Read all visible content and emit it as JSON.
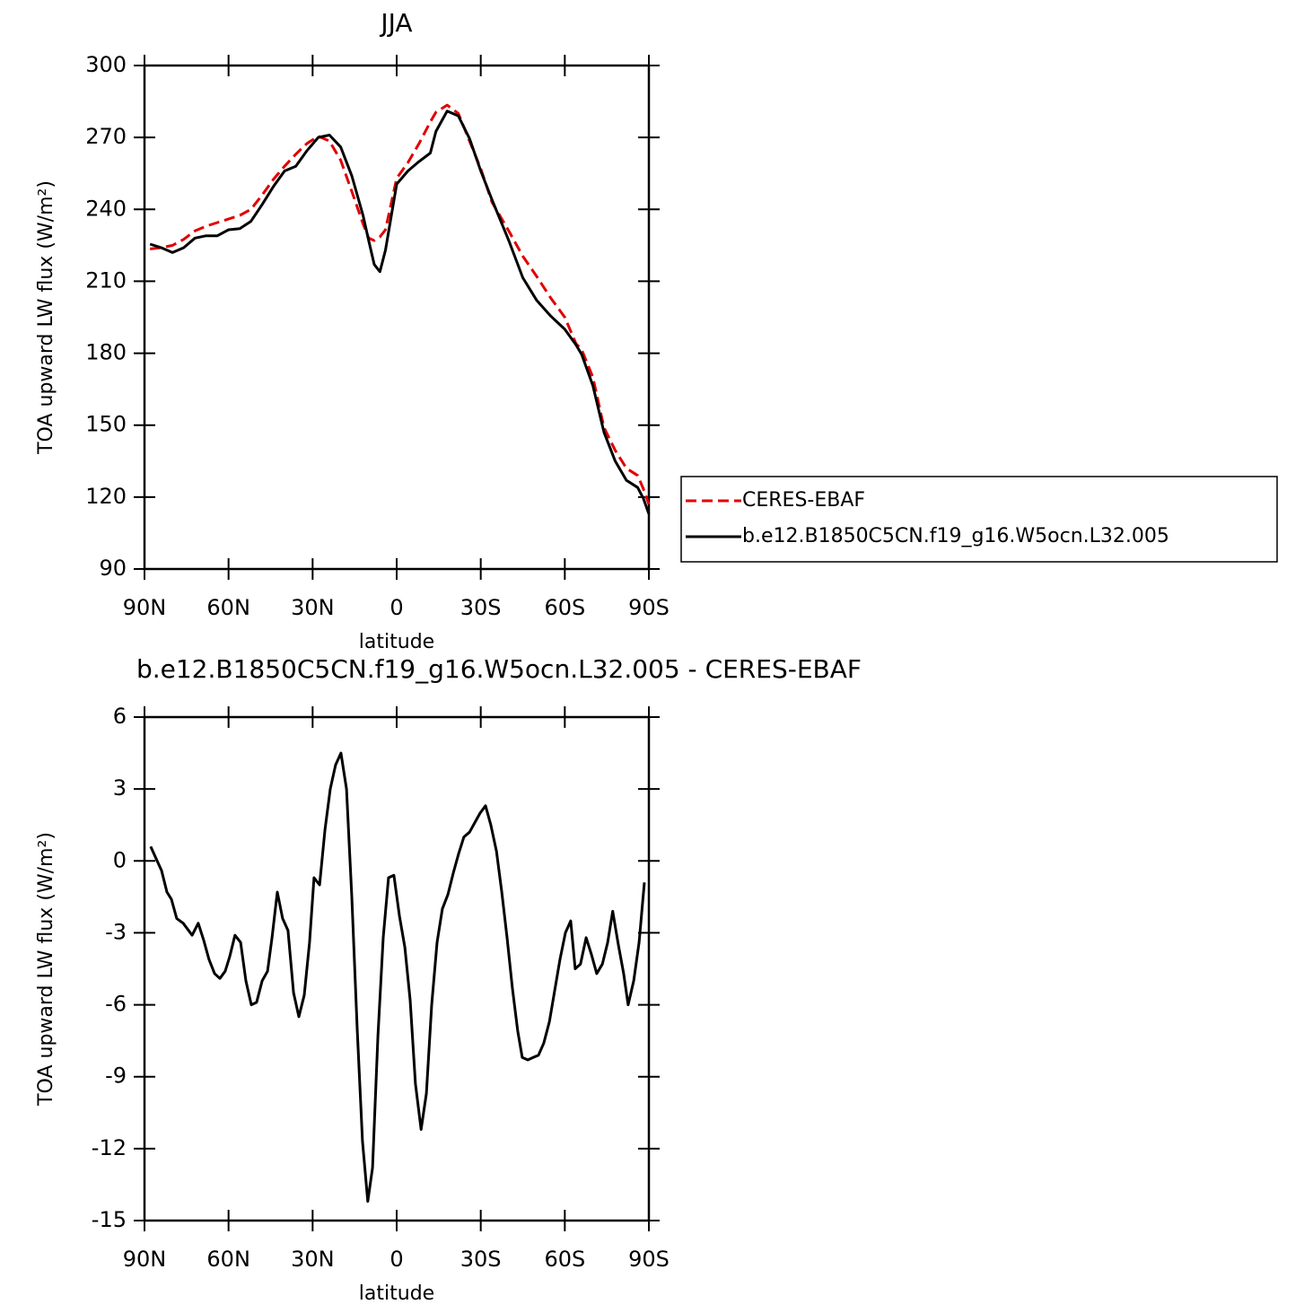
{
  "chart_data": [
    {
      "type": "line",
      "title": "JJA",
      "xlabel": "latitude",
      "ylabel": "TOA upward LW flux (W/m²)",
      "x": [
        88,
        84,
        80,
        76,
        72,
        68,
        64,
        60,
        56,
        52,
        48,
        44,
        40,
        36,
        32,
        28,
        24,
        20,
        16,
        12,
        10,
        8,
        6,
        4,
        0,
        -4,
        -8,
        -12,
        -14,
        -18,
        -22,
        -26,
        -30,
        -34,
        -40,
        -45,
        -50,
        -55,
        -60,
        -64,
        -66,
        -70,
        -74,
        -78,
        -82,
        -86,
        -88,
        -90
      ],
      "series": [
        {
          "name": "CERES-EBAF",
          "color": "#e00000",
          "linestyle": "dashed",
          "values": [
            223.5,
            224,
            225,
            227.5,
            231,
            233,
            234.5,
            236,
            237.5,
            240,
            246,
            252.5,
            258,
            263,
            267.5,
            270.5,
            268.5,
            260.5,
            247.5,
            234,
            228,
            227,
            228.5,
            231.5,
            253,
            259.5,
            267.5,
            276.5,
            280.5,
            283.5,
            280,
            268.5,
            257,
            243,
            231,
            220.5,
            212,
            203,
            195,
            184,
            181.5,
            170,
            149,
            139.5,
            132,
            129,
            123.5,
            117
          ]
        },
        {
          "name": "b.e12.B1850C5CN.f19_g16.W5ocn.L32.005",
          "color": "#000000",
          "linestyle": "solid",
          "values": [
            225.5,
            224,
            222,
            224,
            228,
            229,
            229,
            231.5,
            232,
            235,
            242,
            249.5,
            256,
            258,
            264.5,
            270,
            271,
            266,
            254,
            237.5,
            227,
            217,
            214,
            223,
            250.5,
            256,
            260,
            263.5,
            272.5,
            281,
            279,
            269.5,
            256,
            244,
            227,
            211.5,
            202,
            195.5,
            190,
            183.5,
            179.5,
            166.5,
            147,
            135,
            127,
            124,
            119.5,
            113
          ]
        }
      ],
      "xlim": [
        90,
        -90
      ],
      "xticks": [
        {
          "value": 90,
          "label": "90N"
        },
        {
          "value": 60,
          "label": "60N"
        },
        {
          "value": 30,
          "label": "30N"
        },
        0,
        {
          "value": -30,
          "label": "30S"
        },
        {
          "value": -60,
          "label": "60S"
        },
        {
          "value": -90,
          "label": "90S"
        }
      ],
      "ylim": [
        90,
        300
      ],
      "yticks": [
        90,
        120,
        150,
        180,
        210,
        240,
        270,
        300
      ],
      "legend": "right"
    },
    {
      "type": "line",
      "title": "b.e12.B1850C5CN.f19_g16.W5ocn.L32.005 - CERES-EBAF",
      "xlabel": "latitude",
      "ylabel": "TOA upward LW flux (W/m²)",
      "x": [
        87.8,
        85.5,
        83.9,
        82.0,
        80.4,
        78.5,
        76.2,
        73.0,
        70.8,
        68.9,
        67.0,
        65.0,
        63.1,
        61.2,
        59.6,
        57.7,
        55.7,
        53.8,
        51.9,
        50.0,
        48.0,
        46.1,
        44.5,
        42.6,
        40.7,
        38.8,
        36.8,
        34.9,
        33.0,
        31.1,
        29.5,
        27.5,
        25.6,
        23.7,
        21.8,
        19.9,
        17.9,
        16.0,
        14.1,
        12.2,
        10.3,
        8.6,
        6.7,
        4.8,
        2.9,
        1.0,
        -1.0,
        -2.9,
        -4.8,
        -6.7,
        -8.7,
        -10.6,
        -12.5,
        -14.4,
        -16.3,
        -18.3,
        -20.2,
        -22.1,
        -24.0,
        -26.0,
        -27.9,
        -29.8,
        -31.7,
        -33.6,
        -35.6,
        -37.5,
        -39.4,
        -41.3,
        -43.2,
        -44.8,
        -46.8,
        -48.7,
        -50.6,
        -52.5,
        -54.5,
        -56.4,
        -58.3,
        -60.2,
        -62.1,
        -63.7,
        -65.6,
        -67.6,
        -69.5,
        -71.4,
        -73.4,
        -75.3,
        -77.1,
        -79.1,
        -81.0,
        -82.6,
        -84.6,
        -86.5,
        -88.4
      ],
      "series": [
        {
          "color": "#000000",
          "linestyle": "solid",
          "values": [
            0.6,
            0,
            -0.4,
            -1.3,
            -1.6,
            -2.4,
            -2.6,
            -3.1,
            -2.6,
            -3.3,
            -4.1,
            -4.7,
            -4.9,
            -4.6,
            -4.0,
            -3.1,
            -3.4,
            -5,
            -6,
            -5.9,
            -5,
            -4.6,
            -3.2,
            -1.3,
            -2.4,
            -2.9,
            -5.5,
            -6.5,
            -5.6,
            -3.4,
            -0.7,
            -1,
            1.3,
            3,
            4,
            4.5,
            3,
            -1.5,
            -7,
            -11.7,
            -14.2,
            -12.8,
            -7.3,
            -3.2,
            -0.7,
            -0.6,
            -2.3,
            -3.6,
            -5.8,
            -9.3,
            -11.2,
            -9.7,
            -6,
            -3.4,
            -2,
            -1.4,
            -0.5,
            0.3,
            1,
            1.2,
            1.6,
            2,
            2.3,
            1.5,
            0.4,
            -1.3,
            -3.2,
            -5.3,
            -7.1,
            -8.2,
            -8.3,
            -8.2,
            -8.1,
            -7.6,
            -6.7,
            -5.4,
            -4.1,
            -3,
            -2.5,
            -4.5,
            -4.3,
            -3.2,
            -3.9,
            -4.7,
            -4.3,
            -3.4,
            -2.1,
            -3.5,
            -4.7,
            -6,
            -5,
            -3.4,
            -0.9
          ]
        }
      ],
      "xlim": [
        90,
        -90
      ],
      "xticks": [
        {
          "value": 90,
          "label": "90N"
        },
        {
          "value": 60,
          "label": "60N"
        },
        {
          "value": 30,
          "label": "30N"
        },
        0,
        {
          "value": -30,
          "label": "30S"
        },
        {
          "value": -60,
          "label": "60S"
        },
        {
          "value": -90,
          "label": "90S"
        }
      ],
      "ylim": [
        -15,
        6
      ],
      "yticks": [
        -15,
        -12,
        -9,
        -6,
        -3,
        0,
        3,
        6
      ]
    }
  ]
}
